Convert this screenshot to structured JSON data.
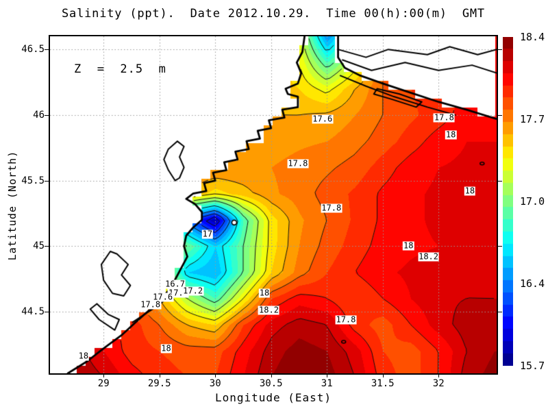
{
  "title": "Salinity (ppt).  Date 2012.10.29.  Time 00(h):00(m)  GMT",
  "annotation_depth": "Z  =  2.5  m",
  "axes": {
    "x_label": "Longitude (East)",
    "y_label": "Latitude (North)",
    "x_ticks": [
      "29",
      "29.5",
      "30",
      "30.5",
      "31",
      "31.5",
      "32"
    ],
    "x_tick_values": [
      29,
      29.5,
      30,
      30.5,
      31,
      31.5,
      32
    ],
    "y_ticks": [
      "46.5",
      "46",
      "45.5",
      "45",
      "44.5"
    ],
    "y_tick_values": [
      46.5,
      46,
      45.5,
      45,
      44.5
    ],
    "lon_range": [
      28.52,
      32.52
    ],
    "lat_range": [
      44.03,
      46.6
    ],
    "grid_color": "#9a9a9a"
  },
  "colorbar": {
    "min": 15.7,
    "max": 18.4,
    "step": 0.1,
    "tick_labels": [
      "18.4",
      "17.7",
      "17.0",
      "16.4",
      "15.7"
    ],
    "colormap": "jet"
  },
  "chart_data": {
    "type": "heatmap",
    "subtype": "filled-contour-map",
    "variable": "Salinity",
    "units": "ppt",
    "date": "2012.10.29",
    "time": "00(h):00(m) GMT",
    "depth_label": "Z = 2.5 m",
    "value_range": [
      15.7,
      18.4
    ],
    "lon": [
      28.5,
      28.75,
      29,
      29.25,
      29.5,
      29.75,
      30,
      30.25,
      30.5,
      30.75,
      31,
      31.25,
      31.5,
      31.75,
      32,
      32.25,
      32.5
    ],
    "lat": [
      46.6,
      46.4,
      46.2,
      46.0,
      45.8,
      45.6,
      45.4,
      45.2,
      45.0,
      44.8,
      44.6,
      44.4,
      44.2,
      44.0
    ],
    "values": [
      [
        17.8,
        17.8,
        17.8,
        17.8,
        17.75,
        17.7,
        17.65,
        17.6,
        17.5,
        17.3,
        16.4,
        17.0,
        17.8,
        17.9,
        17.95,
        18.0,
        18.0
      ],
      [
        17.8,
        17.8,
        17.8,
        17.8,
        17.75,
        17.7,
        17.65,
        17.6,
        17.55,
        17.4,
        16.9,
        17.3,
        17.8,
        17.9,
        17.95,
        18.0,
        18.0
      ],
      [
        17.8,
        17.8,
        17.8,
        17.78,
        17.74,
        17.7,
        17.65,
        17.6,
        17.58,
        17.5,
        17.35,
        17.6,
        17.8,
        17.9,
        17.95,
        18.0,
        18.05
      ],
      [
        17.82,
        17.8,
        17.8,
        17.76,
        17.72,
        17.68,
        17.62,
        17.6,
        17.6,
        17.6,
        17.62,
        17.7,
        17.8,
        17.88,
        17.95,
        18.05,
        18.1
      ],
      [
        17.85,
        17.85,
        17.82,
        17.78,
        17.74,
        17.7,
        17.66,
        17.64,
        17.65,
        17.68,
        17.7,
        17.76,
        17.85,
        17.95,
        18.05,
        18.1,
        18.1
      ],
      [
        17.88,
        17.88,
        17.85,
        17.8,
        17.76,
        17.72,
        17.7,
        17.7,
        17.7,
        17.74,
        17.78,
        17.84,
        17.95,
        18.05,
        18.1,
        18.12,
        18.1
      ],
      [
        17.9,
        17.9,
        17.88,
        17.84,
        17.8,
        17.6,
        17.45,
        17.55,
        17.68,
        17.75,
        17.84,
        17.92,
        18.02,
        18.08,
        18.12,
        18.18,
        18.12
      ],
      [
        17.9,
        17.9,
        17.88,
        17.8,
        17.35,
        16.3,
        15.8,
        16.9,
        17.45,
        17.68,
        17.8,
        17.92,
        18.02,
        18.08,
        18.12,
        18.2,
        18.14
      ],
      [
        17.9,
        17.9,
        17.86,
        17.76,
        17.3,
        17.0,
        16.6,
        17.0,
        17.45,
        17.7,
        17.84,
        17.95,
        18.04,
        18.08,
        18.1,
        18.14,
        18.1
      ],
      [
        17.95,
        17.92,
        17.88,
        17.8,
        17.35,
        16.6,
        16.5,
        17.0,
        17.5,
        17.75,
        17.9,
        18.0,
        18.08,
        18.12,
        18.16,
        18.18,
        18.16
      ],
      [
        18.1,
        18.05,
        17.95,
        17.85,
        17.6,
        17.2,
        16.9,
        17.4,
        17.9,
        18.05,
        18.0,
        17.9,
        18.0,
        18.1,
        18.18,
        18.2,
        18.2
      ],
      [
        18.2,
        18.15,
        18.05,
        17.95,
        17.8,
        17.6,
        17.5,
        17.9,
        18.15,
        18.25,
        18.2,
        17.95,
        17.85,
        18.0,
        18.15,
        18.25,
        18.25
      ],
      [
        18.3,
        18.25,
        18.1,
        17.95,
        17.9,
        17.85,
        17.85,
        18.05,
        18.25,
        18.35,
        18.3,
        18.15,
        17.9,
        17.85,
        18.0,
        18.2,
        18.3
      ],
      [
        18.35,
        18.3,
        18.2,
        18.05,
        17.95,
        17.9,
        17.9,
        18.1,
        18.3,
        18.4,
        18.35,
        18.2,
        17.95,
        17.85,
        18.0,
        18.25,
        18.35
      ]
    ],
    "contour_levels": [
      16.0,
      16.2,
      16.4,
      16.7,
      17.0,
      17.2,
      17.4,
      17.6,
      17.8,
      18.0,
      18.2
    ],
    "contour_labels": [
      {
        "text": "17.6",
        "lon": 30.96,
        "lat": 45.97
      },
      {
        "text": "17.8",
        "lon": 32.05,
        "lat": 45.98
      },
      {
        "text": "18",
        "lon": 32.11,
        "lat": 45.85
      },
      {
        "text": "17.8",
        "lon": 30.74,
        "lat": 45.63
      },
      {
        "text": "17.8",
        "lon": 31.04,
        "lat": 45.29
      },
      {
        "text": "18",
        "lon": 32.28,
        "lat": 45.42
      },
      {
        "text": "17",
        "lon": 29.93,
        "lat": 45.09
      },
      {
        "text": "18",
        "lon": 31.73,
        "lat": 45.0
      },
      {
        "text": "18.2",
        "lon": 31.91,
        "lat": 44.92
      },
      {
        "text": "18",
        "lon": 30.44,
        "lat": 44.64
      },
      {
        "text": "18.2",
        "lon": 30.48,
        "lat": 44.51
      },
      {
        "text": "17.8",
        "lon": 31.17,
        "lat": 44.44
      },
      {
        "text": "16.7",
        "lon": 29.64,
        "lat": 44.71
      },
      {
        "text": "17.4",
        "lon": 29.67,
        "lat": 44.64
      },
      {
        "text": "17.2",
        "lon": 29.8,
        "lat": 44.655
      },
      {
        "text": "17.6",
        "lon": 29.53,
        "lat": 44.61
      },
      {
        "text": "17.8",
        "lon": 29.42,
        "lat": 44.55
      },
      {
        "text": "18",
        "lon": 29.56,
        "lat": 44.22
      },
      {
        "text": "18",
        "lon": 28.82,
        "lat": 44.16
      }
    ],
    "marker": {
      "lon": 30.17,
      "lat": 45.18
    },
    "islets": [
      [
        32.39,
        45.63
      ],
      [
        31.15,
        44.27
      ]
    ],
    "coastlines": [
      [
        [
          30.8,
          46.6
        ],
        [
          30.78,
          46.48
        ],
        [
          30.73,
          46.4
        ],
        [
          30.77,
          46.32
        ],
        [
          30.74,
          46.24
        ],
        [
          30.63,
          46.2
        ],
        [
          30.65,
          46.16
        ],
        [
          30.74,
          46.14
        ],
        [
          30.74,
          46.06
        ],
        [
          30.6,
          46.04
        ],
        [
          30.62,
          45.98
        ],
        [
          30.48,
          45.96
        ],
        [
          30.5,
          45.9
        ],
        [
          30.38,
          45.88
        ],
        [
          30.4,
          45.82
        ],
        [
          30.28,
          45.8
        ],
        [
          30.3,
          45.74
        ],
        [
          30.18,
          45.72
        ],
        [
          30.2,
          45.66
        ],
        [
          30.08,
          45.64
        ],
        [
          30.1,
          45.58
        ],
        [
          29.98,
          45.56
        ],
        [
          30.0,
          45.5
        ],
        [
          29.9,
          45.48
        ],
        [
          29.92,
          45.42
        ],
        [
          29.8,
          45.4
        ],
        [
          29.74,
          45.36
        ],
        [
          29.82,
          45.32
        ],
        [
          29.88,
          45.26
        ],
        [
          29.88,
          45.2
        ],
        [
          29.8,
          45.14
        ],
        [
          29.74,
          45.08
        ],
        [
          29.72,
          45.0
        ],
        [
          29.75,
          44.92
        ],
        [
          29.7,
          44.84
        ],
        [
          29.65,
          44.76
        ],
        [
          29.6,
          44.68
        ],
        [
          29.52,
          44.6
        ],
        [
          29.42,
          44.52
        ],
        [
          29.3,
          44.43
        ],
        [
          29.16,
          44.32
        ],
        [
          29.0,
          44.22
        ],
        [
          28.85,
          44.12
        ],
        [
          28.68,
          44.03
        ]
      ],
      [
        [
          31.1,
          46.6
        ],
        [
          31.1,
          46.44
        ],
        [
          31.16,
          46.36
        ],
        [
          31.3,
          46.3
        ],
        [
          31.5,
          46.24
        ],
        [
          31.75,
          46.17
        ],
        [
          32.0,
          46.1
        ],
        [
          32.25,
          46.04
        ],
        [
          32.52,
          45.97
        ]
      ]
    ],
    "land_close_1": [
      [
        28.52,
        44.03
      ],
      [
        28.52,
        46.6
      ]
    ],
    "land_close_2": [
      [
        32.52,
        46.6
      ]
    ],
    "inner_lines": [
      [
        [
          31.1,
          46.5
        ],
        [
          31.35,
          46.44
        ],
        [
          31.55,
          46.5
        ],
        [
          31.9,
          46.46
        ],
        [
          32.1,
          46.52
        ],
        [
          32.35,
          46.46
        ],
        [
          32.52,
          46.5
        ]
      ],
      [
        [
          31.14,
          46.42
        ],
        [
          31.4,
          46.34
        ],
        [
          31.7,
          46.4
        ],
        [
          32.0,
          46.34
        ],
        [
          32.3,
          46.38
        ],
        [
          32.52,
          46.32
        ]
      ],
      [
        [
          31.12,
          46.3
        ],
        [
          31.35,
          46.22
        ],
        [
          31.6,
          46.14
        ],
        [
          31.9,
          46.06
        ],
        [
          32.15,
          46.0
        ]
      ],
      [
        [
          31.45,
          46.2
        ],
        [
          31.65,
          46.16
        ],
        [
          31.85,
          46.1
        ],
        [
          31.8,
          46.06
        ],
        [
          31.58,
          46.12
        ],
        [
          31.42,
          46.16
        ],
        [
          31.45,
          46.2
        ]
      ],
      [
        [
          29.64,
          45.5
        ],
        [
          29.58,
          45.58
        ],
        [
          29.54,
          45.66
        ],
        [
          29.58,
          45.74
        ],
        [
          29.66,
          45.8
        ],
        [
          29.72,
          45.76
        ],
        [
          29.68,
          45.68
        ],
        [
          29.72,
          45.6
        ],
        [
          29.68,
          45.52
        ],
        [
          29.64,
          45.5
        ]
      ],
      [
        [
          29.06,
          44.96
        ],
        [
          28.98,
          44.86
        ],
        [
          29.0,
          44.74
        ],
        [
          29.08,
          44.64
        ],
        [
          29.18,
          44.62
        ],
        [
          29.24,
          44.7
        ],
        [
          29.16,
          44.78
        ],
        [
          29.22,
          44.86
        ],
        [
          29.12,
          44.94
        ],
        [
          29.06,
          44.96
        ]
      ],
      [
        [
          28.94,
          44.56
        ],
        [
          29.04,
          44.48
        ],
        [
          29.14,
          44.44
        ],
        [
          29.1,
          44.36
        ],
        [
          28.96,
          44.44
        ],
        [
          28.88,
          44.52
        ],
        [
          28.94,
          44.56
        ]
      ],
      [
        [
          29.26,
          44.42
        ],
        [
          29.44,
          44.52
        ],
        [
          29.6,
          44.62
        ],
        [
          29.66,
          44.7
        ]
      ]
    ]
  }
}
